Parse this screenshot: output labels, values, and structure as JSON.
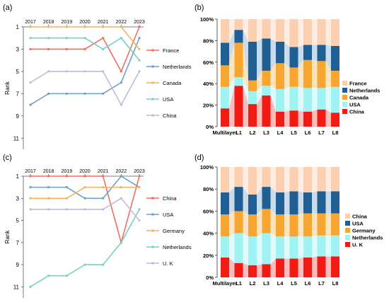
{
  "panels": {
    "a": {
      "label": "(a)"
    },
    "b": {
      "label": "(b)"
    },
    "c": {
      "label": "(c)"
    },
    "d": {
      "label": "(d)"
    }
  },
  "colors": {
    "France": "#f06e5f",
    "Netherlands": "#6f9fcb",
    "Canada": "#f7b25e",
    "USA": "#78d1c2",
    "China": "#c5b8dc",
    "China_c": "#f06e5f",
    "USA_c": "#6f9fcb",
    "Germany_c": "#f7b25e",
    "Netherlands_c": "#78d1c2",
    "UK_c": "#c5b8dc",
    "bar_red": "#f21b14",
    "bar_cyan": "#9ff3f3",
    "bar_orange": "#f7a632",
    "bar_blue": "#1f5f93",
    "bar_peach": "#fad0b0",
    "bar_cyan_light": "#d4f9f9",
    "bar_orange_light": "#fbdbaa",
    "bar_blue_light": "#b6d0e4",
    "bar_peach_light": "#fde7d6"
  },
  "chart_data": [
    {
      "id": "a",
      "type": "line",
      "x": [
        2017,
        2018,
        2019,
        2020,
        2021,
        2022,
        2023
      ],
      "ylabel": "Rank",
      "ylim": [
        1,
        12
      ],
      "yticks": [
        1,
        3,
        5,
        7,
        9,
        11
      ],
      "y_inverted": true,
      "series": [
        {
          "name": "France",
          "values": [
            3,
            3,
            3,
            3,
            2,
            5,
            1
          ]
        },
        {
          "name": "Netherlands",
          "values": [
            8,
            7,
            7,
            7,
            7,
            6,
            2
          ]
        },
        {
          "name": "Canada",
          "values": [
            1,
            1,
            1,
            1,
            1,
            1,
            3
          ]
        },
        {
          "name": "USA",
          "values": [
            2,
            2,
            2,
            2,
            3,
            2,
            4
          ]
        },
        {
          "name": "China",
          "values": [
            6,
            5,
            5,
            5,
            5,
            8,
            5
          ]
        }
      ],
      "legend": "right"
    },
    {
      "id": "b",
      "type": "bar",
      "stacked": true,
      "categories": [
        "Multilayer",
        "L1",
        "L2",
        "L3",
        "L4",
        "L5",
        "L6",
        "L7",
        "L8"
      ],
      "ylim": [
        0,
        100
      ],
      "yticks": [
        "0%",
        "20%",
        "40%",
        "60%",
        "80%",
        "100%"
      ],
      "series": [
        {
          "name": "China",
          "values": [
            17,
            38,
            21,
            29,
            14,
            15,
            14,
            16,
            13
          ]
        },
        {
          "name": "USA",
          "values": [
            20,
            8,
            12,
            9,
            21,
            22,
            22,
            20,
            24
          ]
        },
        {
          "name": "Canada",
          "values": [
            20,
            32,
            10,
            14,
            24,
            18,
            26,
            25,
            15
          ]
        },
        {
          "name": "Netherlands",
          "values": [
            21,
            12,
            36,
            30,
            20,
            19,
            14,
            15,
            23
          ]
        },
        {
          "name": "France",
          "values": [
            22,
            10,
            21,
            18,
            21,
            26,
            24,
            24,
            25
          ]
        }
      ],
      "legend": "right"
    },
    {
      "id": "c",
      "type": "line",
      "x": [
        2017,
        2018,
        2019,
        2020,
        2021,
        2022,
        2023
      ],
      "ylabel": "Rank",
      "ylim": [
        1,
        12
      ],
      "yticks": [
        1,
        3,
        5,
        7,
        9,
        11
      ],
      "y_inverted": true,
      "series": [
        {
          "name": "China",
          "values": [
            1,
            1,
            1,
            1,
            1,
            7,
            1
          ]
        },
        {
          "name": "USA",
          "values": [
            2,
            2,
            2,
            3,
            3,
            1,
            2
          ]
        },
        {
          "name": "Germany",
          "values": [
            3,
            3,
            3,
            2,
            2,
            2,
            2
          ]
        },
        {
          "name": "Netherlands",
          "values": [
            11,
            10,
            10,
            9,
            9,
            7,
            4
          ]
        },
        {
          "name": "U. K",
          "values": [
            4,
            4,
            4,
            4,
            4,
            3,
            5
          ]
        }
      ],
      "legend": "right"
    },
    {
      "id": "d",
      "type": "bar",
      "stacked": true,
      "categories": [
        "Multilayer",
        "L1",
        "L2",
        "L3",
        "L4",
        "L5",
        "L6",
        "L7",
        "L8"
      ],
      "ylim": [
        0,
        100
      ],
      "yticks": [
        "0%",
        "20%",
        "40%",
        "60%",
        "80%",
        "100%"
      ],
      "series": [
        {
          "name": "U. K",
          "values": [
            18,
            13,
            11,
            12,
            17,
            17,
            18,
            19,
            19
          ]
        },
        {
          "name": "Netherlands",
          "values": [
            19,
            27,
            26,
            28,
            20,
            20,
            19,
            19,
            19
          ]
        },
        {
          "name": "Germany",
          "values": [
            20,
            20,
            20,
            22,
            20,
            20,
            21,
            20,
            20
          ]
        },
        {
          "name": "USA",
          "values": [
            20,
            22,
            18,
            20,
            20,
            21,
            19,
            20,
            20
          ]
        },
        {
          "name": "China",
          "values": [
            23,
            18,
            25,
            18,
            23,
            22,
            23,
            22,
            22
          ]
        }
      ],
      "legend": "right"
    }
  ]
}
